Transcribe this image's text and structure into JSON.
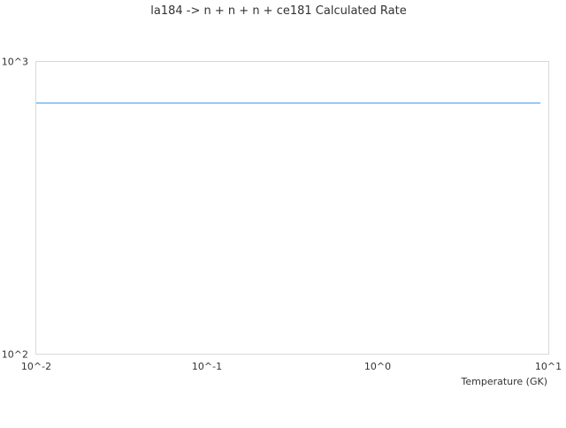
{
  "chart_data": {
    "type": "line",
    "title": "la184 -> n + n + n + ce181 Calculated Rate",
    "xlabel": "Temperature (GK)",
    "ylabel": "",
    "xscale": "log",
    "yscale": "log",
    "xlim": [
      0.01,
      10
    ],
    "ylim": [
      100,
      1000
    ],
    "xticks": [
      {
        "value": 0.01,
        "label": "10^-2"
      },
      {
        "value": 0.1,
        "label": "10^-1"
      },
      {
        "value": 1,
        "label": "10^0"
      },
      {
        "value": 10,
        "label": "10^1"
      }
    ],
    "yticks": [
      {
        "value": 100,
        "label": "10^2"
      },
      {
        "value": 1000,
        "label": "10^3"
      }
    ],
    "grid": false,
    "series": [
      {
        "x": [
          0.01,
          0.1,
          1,
          9
        ],
        "y": [
          721,
          721,
          721,
          721
        ],
        "color": "#5aa9f0"
      }
    ]
  }
}
